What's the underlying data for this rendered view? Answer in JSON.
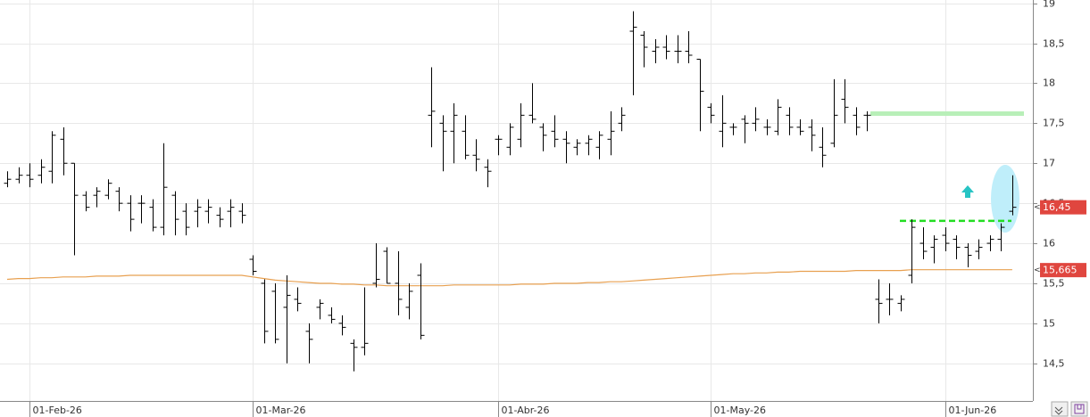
{
  "chart_data": {
    "type": "ohlc",
    "categories": [
      null,
      null,
      "01-Feb-26",
      null,
      null,
      null,
      null,
      null,
      null,
      null,
      null,
      null,
      null,
      null,
      null,
      null,
      null,
      null,
      null,
      null,
      null,
      null,
      "01-Mar-26",
      null,
      null,
      null,
      null,
      null,
      null,
      null,
      null,
      null,
      null,
      null,
      null,
      null,
      null,
      null,
      null,
      null,
      null,
      null,
      null,
      null,
      "01-Abr-26",
      null,
      null,
      null,
      null,
      null,
      null,
      null,
      null,
      null,
      null,
      null,
      null,
      null,
      null,
      null,
      null,
      null,
      null,
      "01-May-26",
      null,
      null,
      null,
      null,
      null,
      null,
      null,
      null,
      null,
      null,
      null,
      null,
      null,
      null,
      null,
      null,
      null,
      null,
      null,
      null,
      "01-Jun-26",
      null,
      null,
      null,
      null,
      null,
      null
    ],
    "open": [
      16.75,
      16.8,
      16.85,
      16.85,
      16.9,
      17.3,
      17.0,
      16.6,
      16.6,
      16.6,
      16.65,
      16.5,
      16.5,
      16.45,
      16.2,
      16.6,
      16.4,
      16.4,
      16.4,
      16.35,
      16.4,
      16.4,
      15.8,
      15.5,
      15.4,
      15.2,
      15.3,
      14.9,
      15.2,
      15.1,
      15.0,
      14.75,
      14.7,
      15.5,
      15.9,
      15.5,
      15.2,
      15.6,
      17.6,
      17.5,
      17.4,
      17.4,
      17.1,
      16.95,
      17.3,
      17.2,
      17.3,
      17.6,
      17.45,
      17.4,
      17.3,
      17.2,
      17.25,
      17.2,
      17.3,
      17.5,
      18.65,
      18.6,
      18.4,
      18.45,
      18.4,
      18.4,
      18.3,
      17.7,
      17.4,
      17.45,
      17.55,
      17.5,
      17.45,
      17.4,
      17.6,
      17.45,
      17.45,
      17.2,
      17.25,
      17.8,
      17.6,
      17.6,
      15.3,
      15.3,
      15.25,
      15.6,
      16.0,
      15.95,
      16.1,
      16.05,
      15.95,
      15.9,
      16.0,
      16.05,
      16.4
    ],
    "high": [
      16.9,
      16.95,
      17.0,
      17.05,
      17.4,
      17.45,
      17.0,
      16.65,
      16.7,
      16.8,
      16.7,
      16.6,
      16.6,
      16.55,
      17.25,
      16.65,
      16.5,
      16.55,
      16.55,
      16.45,
      16.55,
      16.5,
      15.85,
      15.55,
      15.5,
      15.6,
      15.45,
      15.0,
      15.3,
      15.2,
      15.1,
      14.8,
      15.45,
      16.0,
      15.95,
      15.9,
      15.5,
      15.75,
      18.2,
      17.6,
      17.75,
      17.6,
      17.3,
      17.05,
      17.35,
      17.5,
      17.75,
      18.0,
      17.5,
      17.6,
      17.4,
      17.3,
      17.35,
      17.4,
      17.65,
      17.7,
      18.9,
      18.65,
      18.55,
      18.6,
      18.6,
      18.65,
      18.3,
      17.75,
      17.85,
      17.5,
      17.6,
      17.7,
      17.55,
      17.8,
      17.7,
      17.55,
      17.55,
      17.45,
      18.05,
      18.05,
      17.7,
      17.65,
      15.55,
      15.5,
      15.35,
      16.3,
      16.2,
      16.1,
      16.2,
      16.1,
      16.0,
      16.05,
      16.1,
      16.25,
      16.85
    ],
    "low": [
      16.7,
      16.75,
      16.7,
      16.75,
      16.75,
      16.85,
      15.85,
      16.4,
      16.45,
      16.55,
      16.4,
      16.15,
      16.25,
      16.15,
      16.1,
      16.1,
      16.1,
      16.2,
      16.25,
      16.2,
      16.2,
      16.25,
      15.6,
      14.75,
      14.75,
      14.5,
      15.15,
      14.5,
      15.05,
      15.0,
      14.85,
      14.4,
      14.6,
      15.45,
      15.5,
      15.1,
      15.05,
      14.8,
      17.2,
      16.9,
      17.0,
      17.05,
      16.9,
      16.7,
      17.1,
      17.1,
      17.2,
      17.5,
      17.15,
      17.2,
      17.0,
      17.1,
      17.1,
      17.05,
      17.1,
      17.4,
      17.85,
      18.2,
      18.25,
      18.3,
      18.25,
      18.25,
      17.4,
      17.5,
      17.2,
      17.35,
      17.25,
      17.4,
      17.35,
      17.35,
      17.35,
      17.35,
      17.15,
      16.95,
      17.2,
      17.5,
      17.35,
      17.4,
      15.0,
      15.1,
      15.15,
      15.5,
      15.8,
      15.75,
      15.9,
      15.8,
      15.7,
      15.8,
      15.9,
      15.9,
      16.35
    ],
    "close": [
      16.8,
      16.85,
      16.8,
      16.95,
      17.35,
      17.0,
      16.6,
      16.45,
      16.65,
      16.75,
      16.5,
      16.3,
      16.5,
      16.2,
      16.7,
      16.3,
      16.2,
      16.45,
      16.45,
      16.3,
      16.45,
      16.35,
      15.65,
      14.9,
      14.8,
      15.35,
      15.25,
      14.8,
      15.25,
      15.05,
      14.95,
      14.7,
      14.75,
      15.55,
      15.5,
      15.3,
      15.4,
      14.85,
      17.65,
      17.4,
      17.6,
      17.1,
      17.05,
      16.9,
      17.3,
      17.45,
      17.6,
      17.55,
      17.35,
      17.3,
      17.25,
      17.25,
      17.3,
      17.35,
      17.4,
      17.6,
      18.7,
      18.45,
      18.45,
      18.4,
      18.4,
      18.35,
      17.9,
      17.6,
      17.5,
      17.45,
      17.5,
      17.55,
      17.45,
      17.7,
      17.45,
      17.4,
      17.35,
      17.1,
      17.6,
      17.7,
      17.45,
      17.6,
      15.25,
      15.3,
      15.3,
      16.2,
      15.9,
      16.05,
      16.0,
      15.95,
      15.85,
      15.95,
      16.05,
      16.2,
      16.45
    ],
    "color": "#000000",
    "moving_average": {
      "color": "#e8a050",
      "values": [
        15.55,
        15.56,
        15.56,
        15.57,
        15.57,
        15.58,
        15.58,
        15.58,
        15.59,
        15.59,
        15.59,
        15.6,
        15.6,
        15.6,
        15.6,
        15.6,
        15.6,
        15.6,
        15.6,
        15.6,
        15.6,
        15.6,
        15.58,
        15.56,
        15.54,
        15.53,
        15.52,
        15.51,
        15.5,
        15.5,
        15.49,
        15.49,
        15.48,
        15.48,
        15.47,
        15.47,
        15.47,
        15.47,
        15.47,
        15.47,
        15.48,
        15.48,
        15.48,
        15.48,
        15.48,
        15.48,
        15.49,
        15.49,
        15.49,
        15.5,
        15.5,
        15.5,
        15.51,
        15.51,
        15.52,
        15.52,
        15.53,
        15.54,
        15.55,
        15.56,
        15.57,
        15.58,
        15.59,
        15.6,
        15.61,
        15.62,
        15.62,
        15.63,
        15.63,
        15.64,
        15.64,
        15.65,
        15.65,
        15.65,
        15.65,
        15.65,
        15.66,
        15.66,
        15.66,
        15.66,
        15.66,
        15.67,
        15.67,
        15.67,
        15.67,
        15.67,
        15.67,
        15.67,
        15.67,
        15.67,
        15.67
      ]
    },
    "price_labels": [
      {
        "value": 16.45,
        "label": "16,45",
        "color": "#e0463f"
      },
      {
        "value": 15.665,
        "label": "15,665",
        "color": "#e0463f"
      }
    ],
    "levels": [
      {
        "value": 17.62,
        "color": "#b8efb8",
        "dashed": false
      },
      {
        "value": 16.28,
        "color": "#22dd22",
        "dashed": true
      }
    ],
    "ylim": [
      14.03,
      19.04
    ],
    "yticks": [
      {
        "value": 14.5,
        "label": "14,5"
      },
      15,
      {
        "value": 15.5,
        "label": "15,5"
      },
      16,
      {
        "value": 16.5,
        "label": "16,5"
      },
      17,
      {
        "value": 17.5,
        "label": "17,5"
      },
      18,
      {
        "value": 18.5,
        "label": "18,5"
      },
      19
    ],
    "grid": true
  }
}
